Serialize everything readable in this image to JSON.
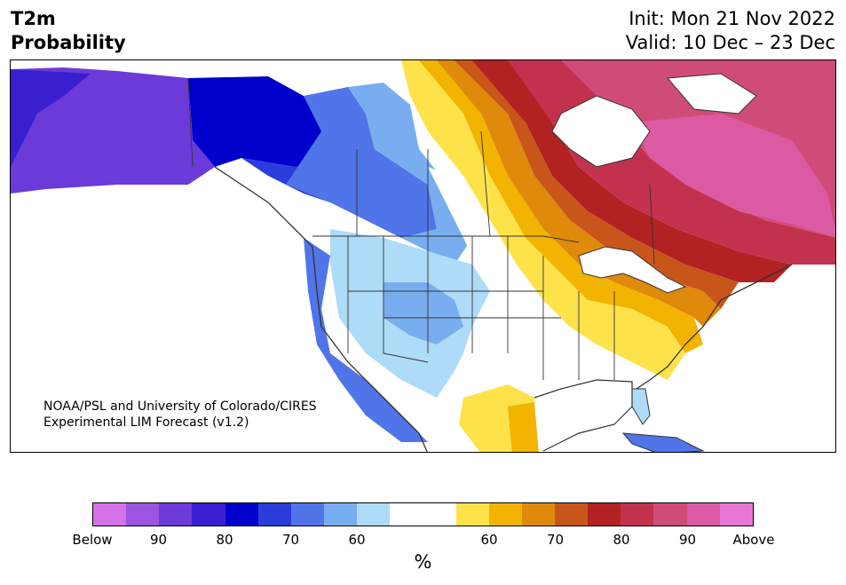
{
  "header": {
    "title_line1": "T2m",
    "title_line2": "Probability",
    "init": "Init: Mon 21 Nov 2022",
    "valid": "Valid: 10 Dec – 23 Dec"
  },
  "credit": {
    "line1": "NOAA/PSL and University of Colorado/CIRES",
    "line2": "Experimental LIM Forecast (v1.2)"
  },
  "colorbar": {
    "colors": [
      "#d572e8",
      "#9b55e0",
      "#6b3ad8",
      "#3a1fd0",
      "#0000cc",
      "#2a3ddb",
      "#4f75e8",
      "#78aeef",
      "#aedbf8",
      "#ffffff",
      "#ffffff",
      "#fde24a",
      "#f2b400",
      "#e08a0c",
      "#c8561a",
      "#b22222",
      "#c2324e",
      "#d04c78",
      "#dc5aa4",
      "#e878d8"
    ],
    "tick_labels": [
      "Below",
      "90",
      "80",
      "70",
      "60",
      "60",
      "70",
      "80",
      "90",
      "Above"
    ],
    "unit": "%"
  },
  "map": {
    "region": "North America",
    "colors": {
      "deep_blue": "#0000cc",
      "purple": "#6b3ad8",
      "light_blue": "#aedbf8",
      "yellow": "#fde24a",
      "orange": "#e08a0c",
      "red": "#b22222",
      "magenta": "#d04c78"
    }
  }
}
